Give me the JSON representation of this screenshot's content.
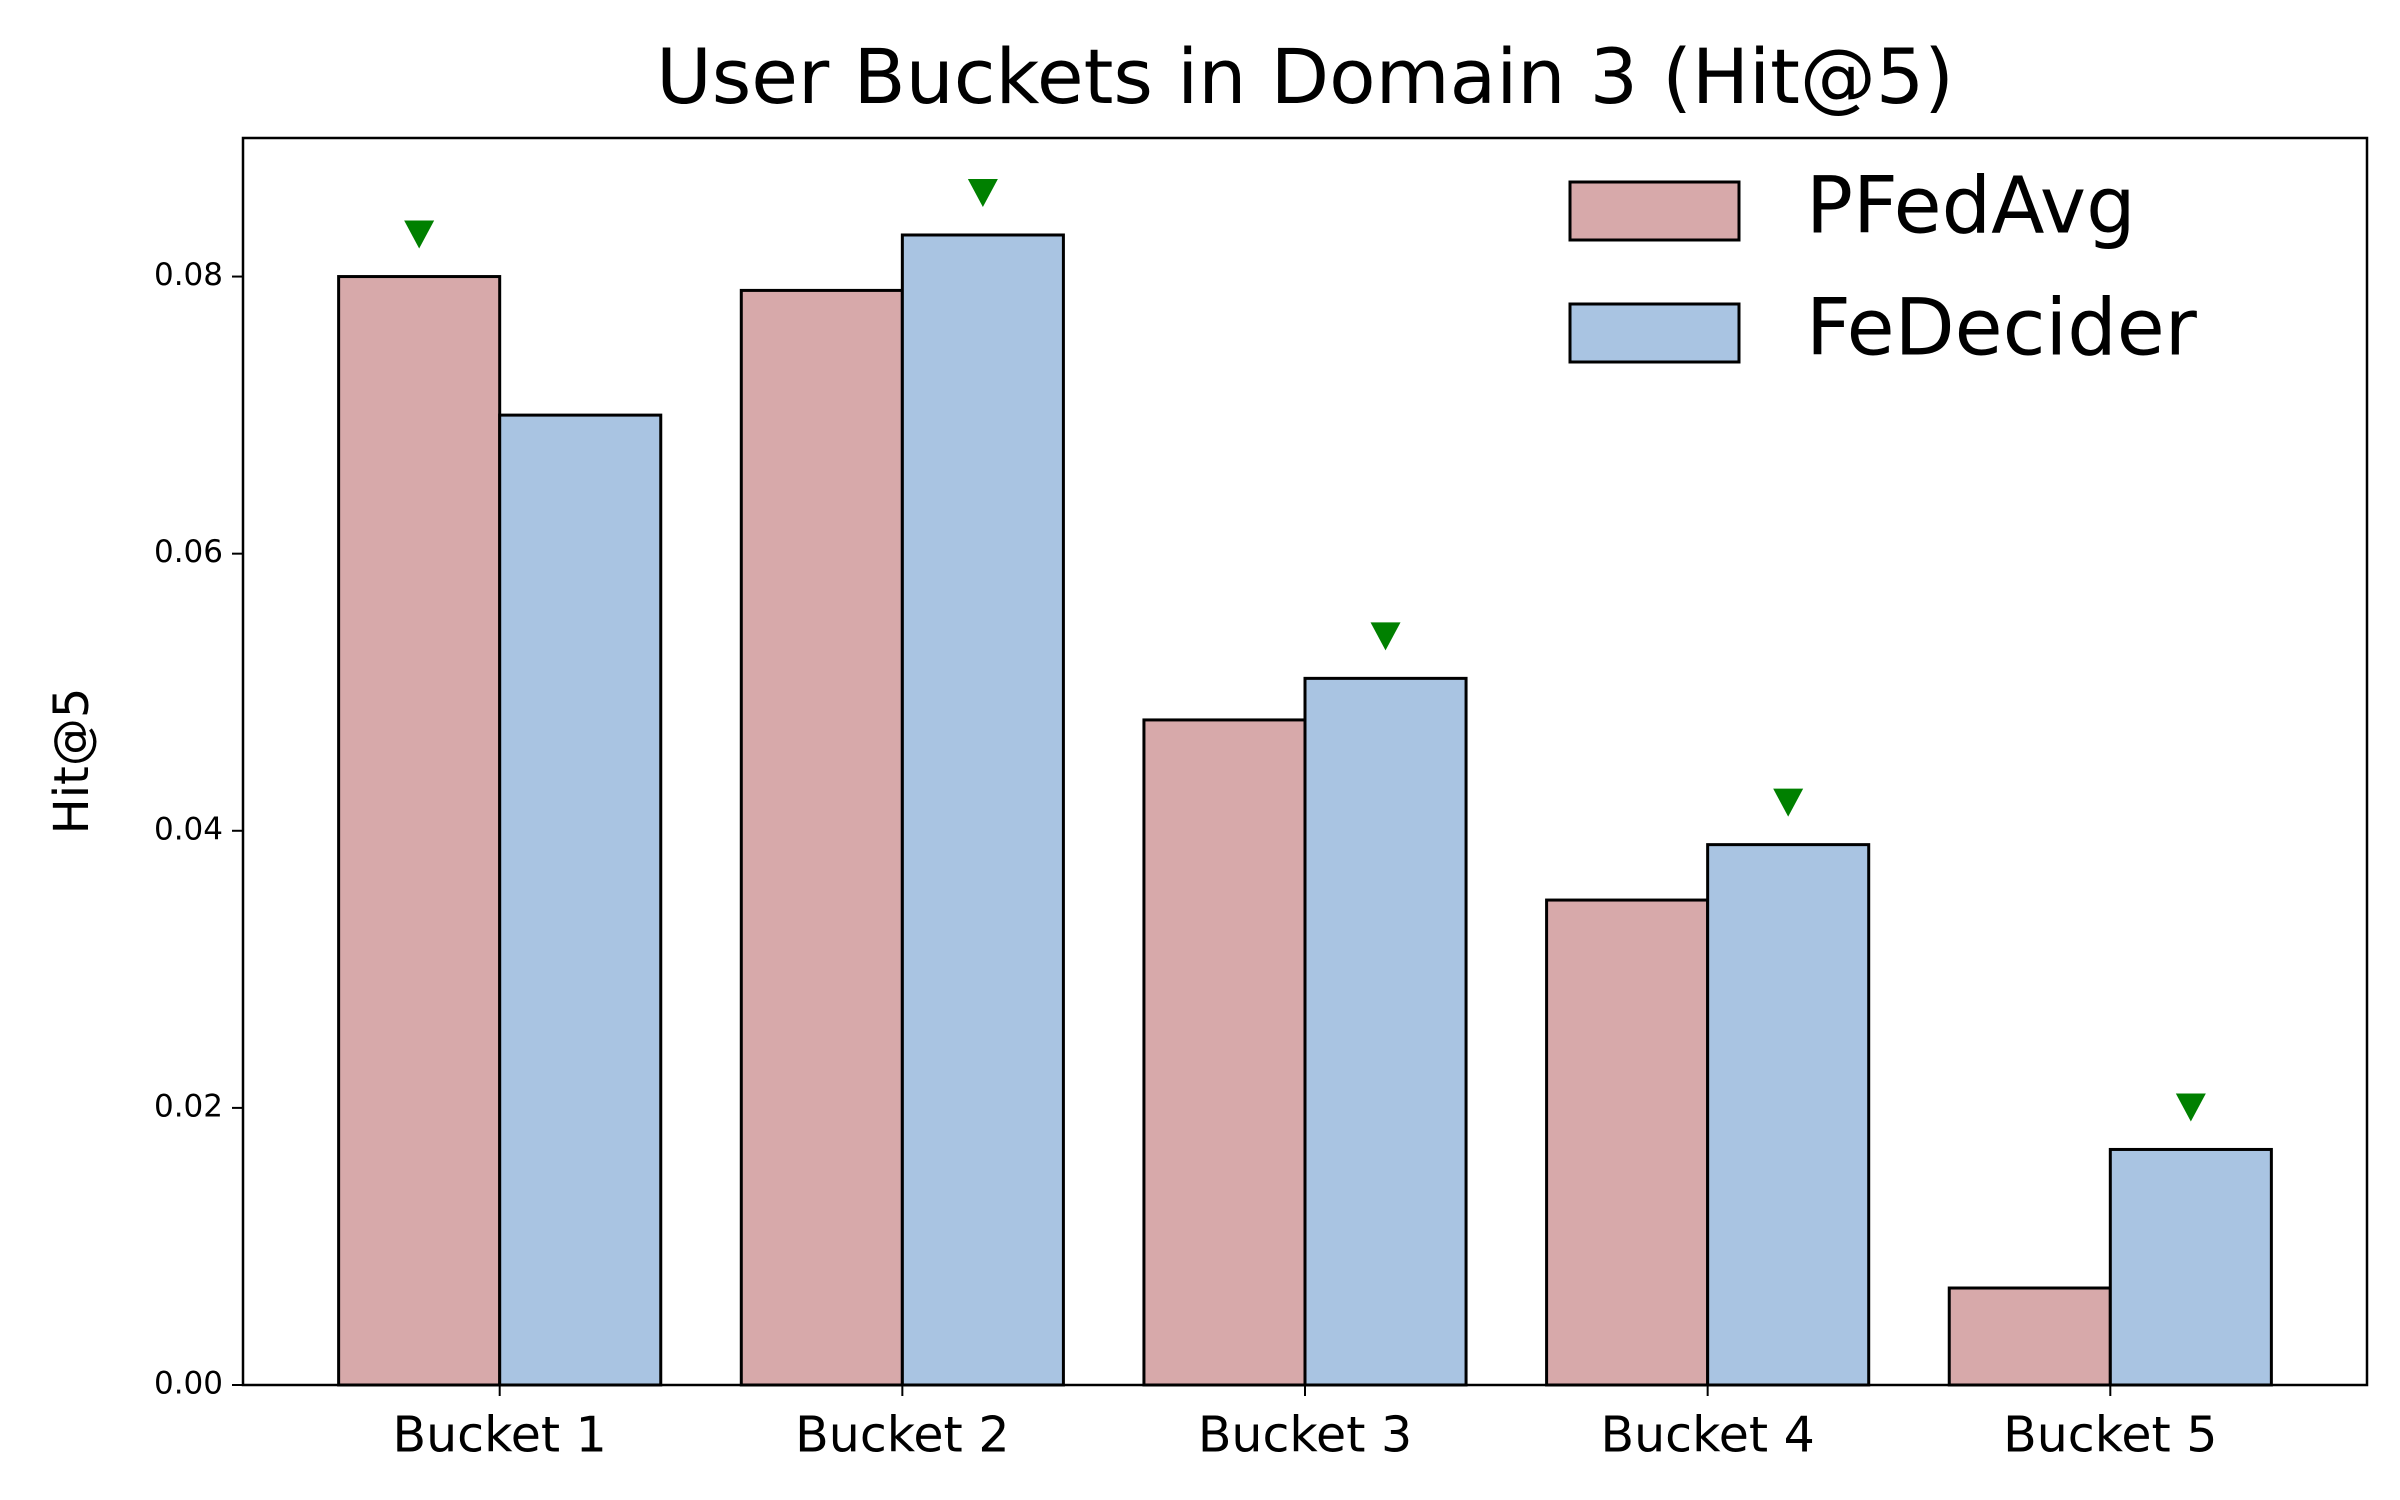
{
  "chart_data": {
    "type": "bar",
    "title": "User Buckets in Domain 3 (Hit@5)",
    "y_label": "Hit@5",
    "categories": [
      "Bucket 1",
      "Bucket 2",
      "Bucket 3",
      "Bucket 4",
      "Bucket 5"
    ],
    "series": [
      {
        "name": "PFedAvg",
        "color": "#d7a9aa",
        "values": [
          0.08,
          0.079,
          0.048,
          0.035,
          0.007
        ]
      },
      {
        "name": "FeDecider",
        "color": "#a9c4e2",
        "values": [
          0.07,
          0.083,
          0.051,
          0.039,
          0.017
        ]
      }
    ],
    "ylim": [
      0,
      0.09
    ],
    "yticks": [
      {
        "value": 0,
        "label": "0.00"
      },
      0.02,
      0.04,
      0.06,
      0.08
    ],
    "grid": false,
    "legend": "upper right",
    "best_marker_color": "green"
  }
}
